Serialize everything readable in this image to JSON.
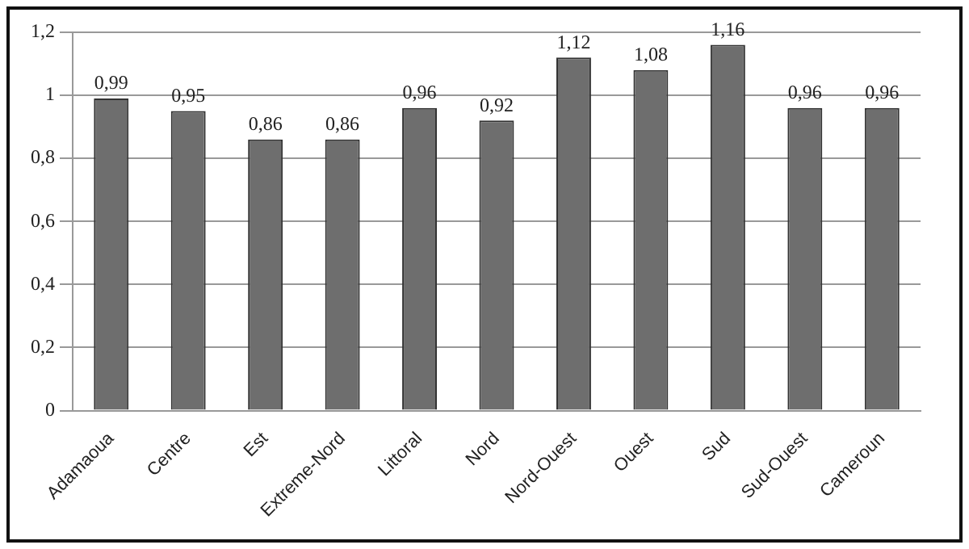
{
  "chart_data": {
    "type": "bar",
    "categories": [
      "Adamaoua",
      "Centre",
      "Est",
      "Extreme-Nord",
      "Littoral",
      "Nord",
      "Nord-Ouest",
      "Ouest",
      "Sud",
      "Sud-Ouest",
      "Cameroun"
    ],
    "values": [
      0.99,
      0.95,
      0.86,
      0.86,
      0.96,
      0.92,
      1.12,
      1.08,
      1.16,
      0.96,
      0.96
    ],
    "value_labels": [
      "0,99",
      "0,95",
      "0,86",
      "0,86",
      "0,96",
      "0,92",
      "1,12",
      "1,08",
      "1,16",
      "0,96",
      "0,96"
    ],
    "color": "#6e6e6e",
    "ylim": [
      0,
      1.2
    ],
    "yticks": [
      {
        "value": 0,
        "label": "0"
      },
      {
        "value": 0.2,
        "label": "0,2"
      },
      {
        "value": 0.4,
        "label": "0,4"
      },
      {
        "value": 0.6,
        "label": "0,6"
      },
      {
        "value": 0.8,
        "label": "0,8"
      },
      {
        "value": 1,
        "label": "1"
      },
      {
        "value": 1.2,
        "label": "1,2"
      }
    ],
    "grid": "y",
    "legend": false
  }
}
